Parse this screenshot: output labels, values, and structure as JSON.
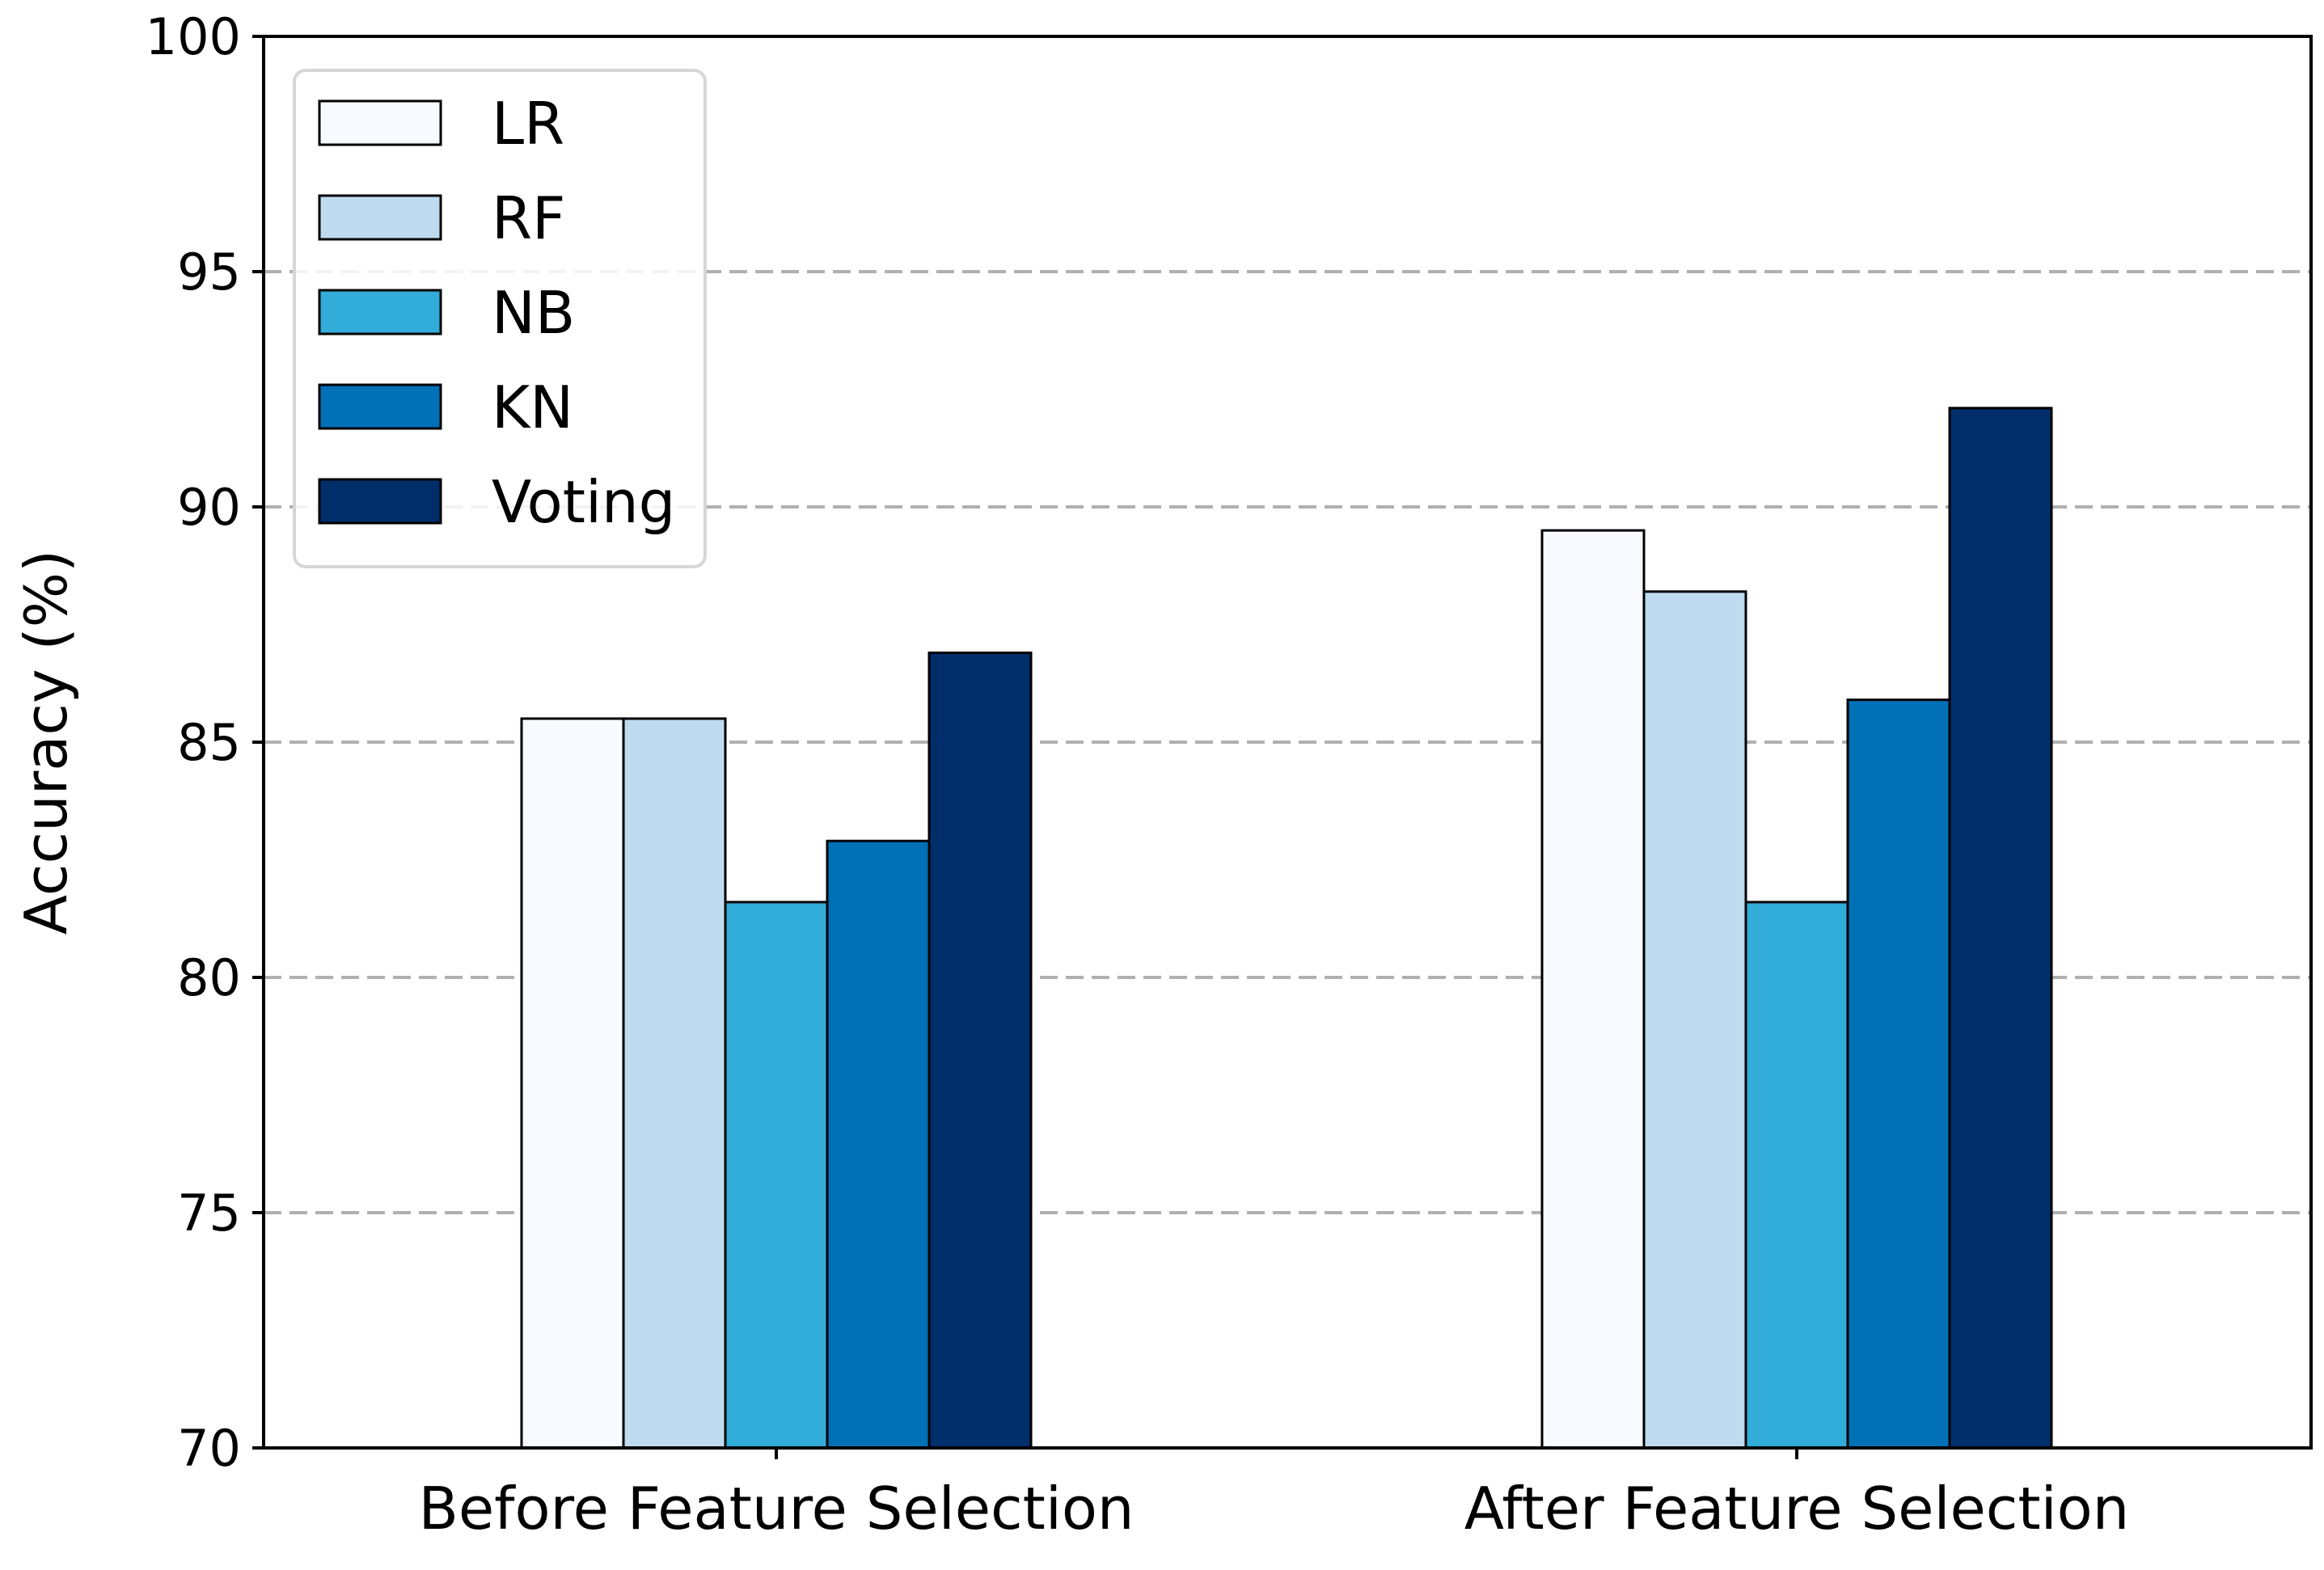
{
  "chart_data": {
    "type": "bar",
    "title": "",
    "xlabel": "",
    "ylabel": "Accuracy (%)",
    "ylim": [
      70,
      100
    ],
    "yticks": [
      "70",
      "75",
      "80",
      "85",
      "90",
      "95",
      "100"
    ],
    "grid": "horizontal dashed",
    "legend_position": "top-left",
    "categories": [
      "Before Feature Selection",
      "After Feature Selection"
    ],
    "series": [
      {
        "name": "LR",
        "color": "#f7fbff",
        "values": [
          85.5,
          89.5
        ]
      },
      {
        "name": "RF",
        "color": "#bfdbf0",
        "values": [
          85.5,
          88.2
        ]
      },
      {
        "name": "NB",
        "color": "#32acd8",
        "values": [
          81.6,
          81.6
        ]
      },
      {
        "name": "KN",
        "color": "#0070b7",
        "values": [
          82.9,
          85.9
        ]
      },
      {
        "name": "Voting",
        "color": "#002e6b",
        "values": [
          86.9,
          92.1
        ]
      }
    ]
  }
}
